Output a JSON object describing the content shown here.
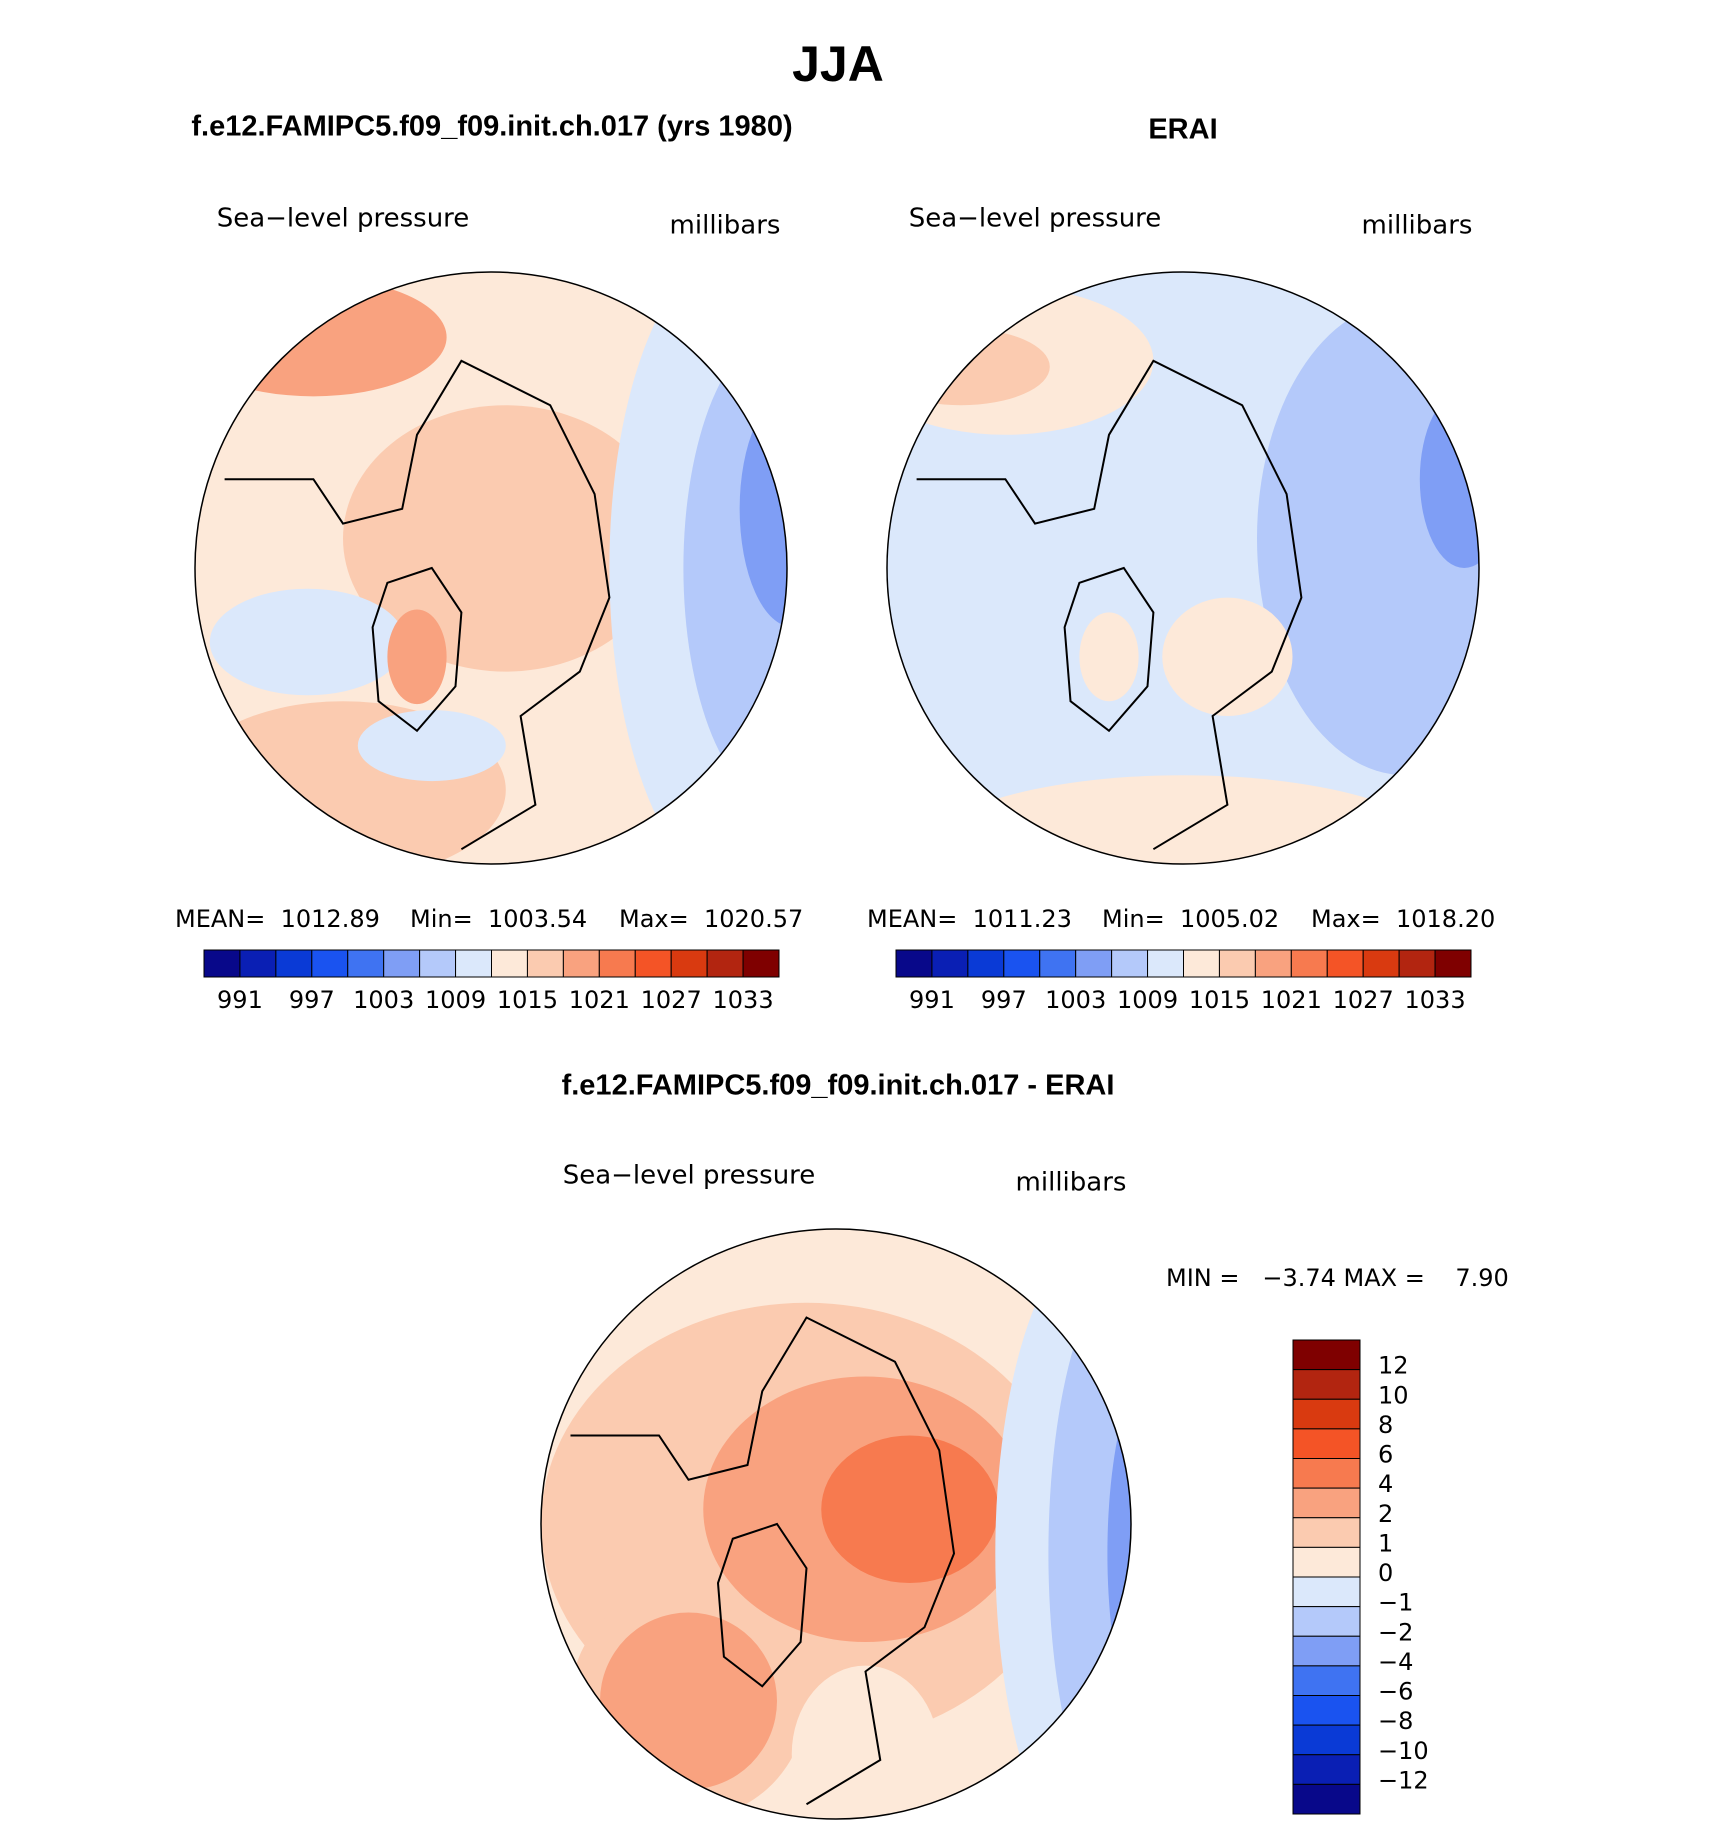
{
  "title": "JJA",
  "panels": [
    {
      "title": "f.e12.FAMIPC5.f09_f09.init.ch.017 (yrs 1980)",
      "left_label": "Sea−level pressure",
      "right_label": "millibars",
      "stats": [
        "MEAN=  1012.89",
        "Min=  1003.54",
        "Max=  1020.57"
      ]
    },
    {
      "title": "ERAI",
      "left_label": "Sea−level pressure",
      "right_label": "millibars",
      "stats": [
        "MEAN=  1011.23",
        "Min=  1005.02",
        "Max=  1018.20"
      ]
    }
  ],
  "colorbar": {
    "colors": [
      "#08088a",
      "#0a1fb4",
      "#0a3ad6",
      "#1a53f0",
      "#3f73f2",
      "#7f9ef5",
      "#b4c9fa",
      "#dbe8fb",
      "#fde9d9",
      "#fbcbb0",
      "#f9a27f",
      "#f77a4f",
      "#f45426",
      "#d93a10",
      "#b22510",
      "#7f0000"
    ],
    "labels": [
      "991",
      "997",
      "1003",
      "1009",
      "1015",
      "1021",
      "1027",
      "1033"
    ]
  },
  "difference": {
    "title": "f.e12.FAMIPC5.f09_f09.init.ch.017 - ERAI",
    "left_label": "Sea−level pressure",
    "right_label": "millibars",
    "stats": "MIN =   −3.74 MAX =    7.90",
    "colorbar": {
      "colors": [
        "#7f0000",
        "#b22510",
        "#d93a10",
        "#f45426",
        "#f77a4f",
        "#f9a27f",
        "#fbcbb0",
        "#fde9d9",
        "#dbe8fb",
        "#b4c9fa",
        "#7f9ef5",
        "#3f73f2",
        "#1a53f0",
        "#0a3ad6",
        "#0a1fb4",
        "#08088a"
      ],
      "labels": [
        "12",
        "10",
        "8",
        "6",
        "4",
        "2",
        "1",
        "0",
        "−1",
        "−2",
        "−4",
        "−6",
        "−8",
        "−10",
        "−12"
      ]
    }
  }
}
